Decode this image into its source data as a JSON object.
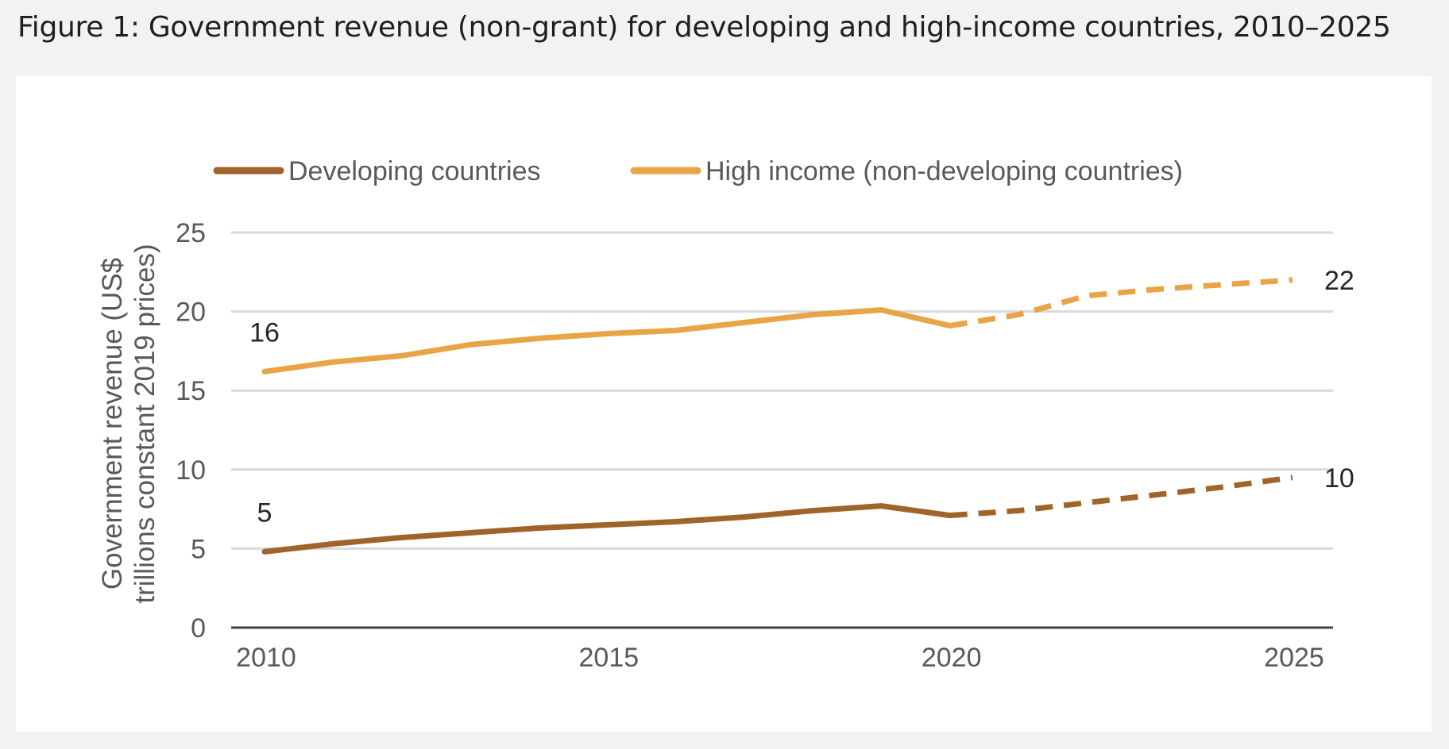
{
  "figure": {
    "title": "Figure 1: Government revenue (non-grant) for developing and high-income countries, 2010–2025"
  },
  "colors": {
    "page_background": "#f2f2f2",
    "panel_background": "#ffffff",
    "developing": "#a0632a",
    "high_income": "#e9a447",
    "gridline": "#d9d9d9",
    "axis_line": "#404040",
    "text": "#595959"
  },
  "chart_data": {
    "type": "line",
    "title": "",
    "ylabel_lines": [
      "Government revenue (US$",
      "trillions constant 2019 prices)"
    ],
    "xlabel": "",
    "xlim": [
      2010,
      2025
    ],
    "ylim": [
      0,
      25
    ],
    "x_ticks": [
      2010,
      2015,
      2020,
      2025
    ],
    "y_ticks": [
      0,
      5,
      10,
      15,
      20,
      25
    ],
    "grid": true,
    "legend_position": "top",
    "projection_from": 2020,
    "x": [
      2010,
      2011,
      2012,
      2013,
      2014,
      2015,
      2016,
      2017,
      2018,
      2019,
      2020,
      2021,
      2022,
      2023,
      2024,
      2025
    ],
    "series": [
      {
        "name": "Developing countries",
        "values": [
          4.8,
          5.3,
          5.7,
          6.0,
          6.3,
          6.5,
          6.7,
          7.0,
          7.4,
          7.7,
          7.1,
          7.4,
          7.9,
          8.4,
          8.9,
          9.5
        ],
        "start_label": "5",
        "end_label": "10"
      },
      {
        "name": "High income (non-developing countries)",
        "values": [
          16.2,
          16.8,
          17.2,
          17.9,
          18.3,
          18.6,
          18.8,
          19.3,
          19.8,
          20.1,
          19.1,
          19.8,
          21.0,
          21.4,
          21.7,
          22.0
        ],
        "start_label": "16",
        "end_label": "22"
      }
    ]
  }
}
